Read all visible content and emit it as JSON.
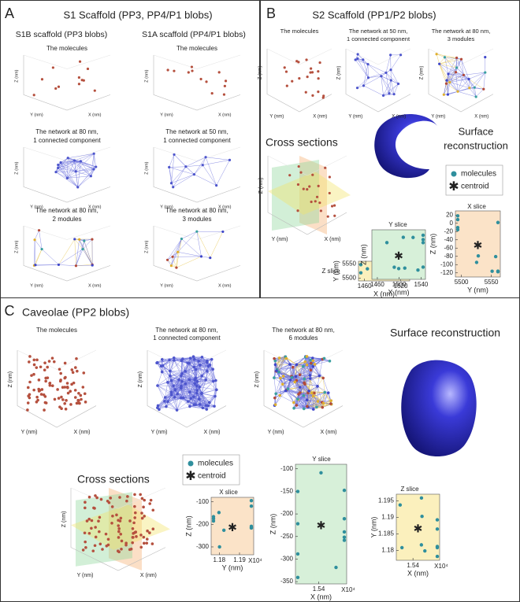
{
  "panels": {
    "A": {
      "label": "A",
      "title": "S1 Scaffold (PP3, PP4/P1 blobs)",
      "columns": [
        "S1B scaffold (PP3 blobs)",
        "S1A scaffold (PP4/P1 blobs)"
      ],
      "axes": {
        "x": "X (nm)",
        "y": "Y (nm)",
        "z": "Z (nm)"
      },
      "plots": [
        {
          "title": [
            "The molecules"
          ]
        },
        {
          "title": [
            "The molecules"
          ]
        },
        {
          "title": [
            "The network at 80 nm,",
            "1 connected component"
          ]
        },
        {
          "title": [
            "The network at 50 nm,",
            "1 connected component"
          ]
        },
        {
          "title": [
            "The network at 80 nm,",
            "2 modules"
          ]
        },
        {
          "title": [
            "The network at 80 nm,",
            "3 modules"
          ]
        }
      ]
    },
    "B": {
      "label": "B",
      "title": "S2 Scaffold (PP1/P2 blobs)",
      "axes": {
        "x": "X (nm)",
        "y": "Y (nm)",
        "z": "Z (nm)"
      },
      "plots": [
        {
          "title": [
            "The molecules"
          ]
        },
        {
          "title": [
            "The network at 50 nm,",
            "1 connected component"
          ]
        },
        {
          "title": [
            "The network at 80 nm,",
            "3 modules"
          ]
        }
      ],
      "cross_sections": "Cross sections",
      "surface": [
        "Surface",
        "reconstruction"
      ],
      "legend": [
        "molecules",
        "centroid"
      ],
      "slices": [
        {
          "title": "Z slice",
          "xlabel": "X (nm)",
          "ylabel": "Y (nm)",
          "color": "#fbf0bd",
          "xlim": [
            1450,
            1535
          ],
          "xticks": [
            1460,
            1520
          ],
          "ylim": [
            5490,
            5560
          ],
          "yticks": [
            5500,
            5550
          ]
        },
        {
          "title": "Y slice",
          "xlabel": "X (nm)",
          "ylabel": "Z (nm)",
          "color": "#d7f0d9",
          "xlim": [
            1450,
            1548
          ],
          "xticks": [
            1460,
            1500,
            1540
          ]
        },
        {
          "title": "X slice",
          "xlabel": "Y (nm)",
          "ylabel": "Z (nm)",
          "color": "#fbe3c8",
          "xlim": [
            5490,
            5565
          ],
          "xticks": [
            5500,
            5550
          ],
          "ylim": [
            -130,
            30
          ],
          "yticks": [
            20,
            0,
            -20,
            -40,
            -60,
            -80,
            -100,
            -120
          ]
        }
      ]
    },
    "C": {
      "label": "C",
      "title": "Caveolae (PP2 blobs)",
      "axes": {
        "x": "X (nm)",
        "y": "Y (nm)",
        "z": "Z (nm)"
      },
      "plots": [
        {
          "title": [
            "The molecules"
          ]
        },
        {
          "title": [
            "The network at 80 nm,",
            "1 connected component"
          ]
        },
        {
          "title": [
            "The network at 80 nm,",
            "6 modules"
          ]
        }
      ],
      "surface": [
        "Surface reconstruction"
      ],
      "cross_sections": "Cross sections",
      "legend": [
        "molecules",
        "centroid"
      ],
      "slices": [
        {
          "title": "X slice",
          "xlabel": "Y (nm)",
          "ylabel": "Z (nm)",
          "color": "#fbe3c8",
          "exponent": "X10⁴",
          "xlim": [
            1.176,
            1.197
          ],
          "xticks": [
            1.18,
            1.19
          ],
          "ylim": [
            -335,
            -80
          ],
          "yticks": [
            -100,
            -200,
            -300
          ]
        },
        {
          "title": "Y slice",
          "xlabel": "X (nm)",
          "ylabel": "Z (nm)",
          "color": "#d7f0d9",
          "exponent": "X10⁴",
          "xlim": [
            1.535,
            1.546
          ],
          "xticks": [
            1.54
          ],
          "ylim": [
            -355,
            -90
          ],
          "yticks": [
            -100,
            -150,
            -200,
            -250,
            -300,
            -350
          ]
        },
        {
          "title": "Z slice",
          "xlabel": "X (nm)",
          "ylabel": "Y (nm)",
          "color": "#fbf0bd",
          "exponent": "X10⁴",
          "xlim": [
            1.535,
            1.548
          ],
          "xticks": [
            1.54
          ],
          "ylim": [
            1.177,
            1.197
          ],
          "yticks": [
            1.18,
            1.185,
            1.19,
            1.195
          ]
        }
      ]
    }
  }
}
